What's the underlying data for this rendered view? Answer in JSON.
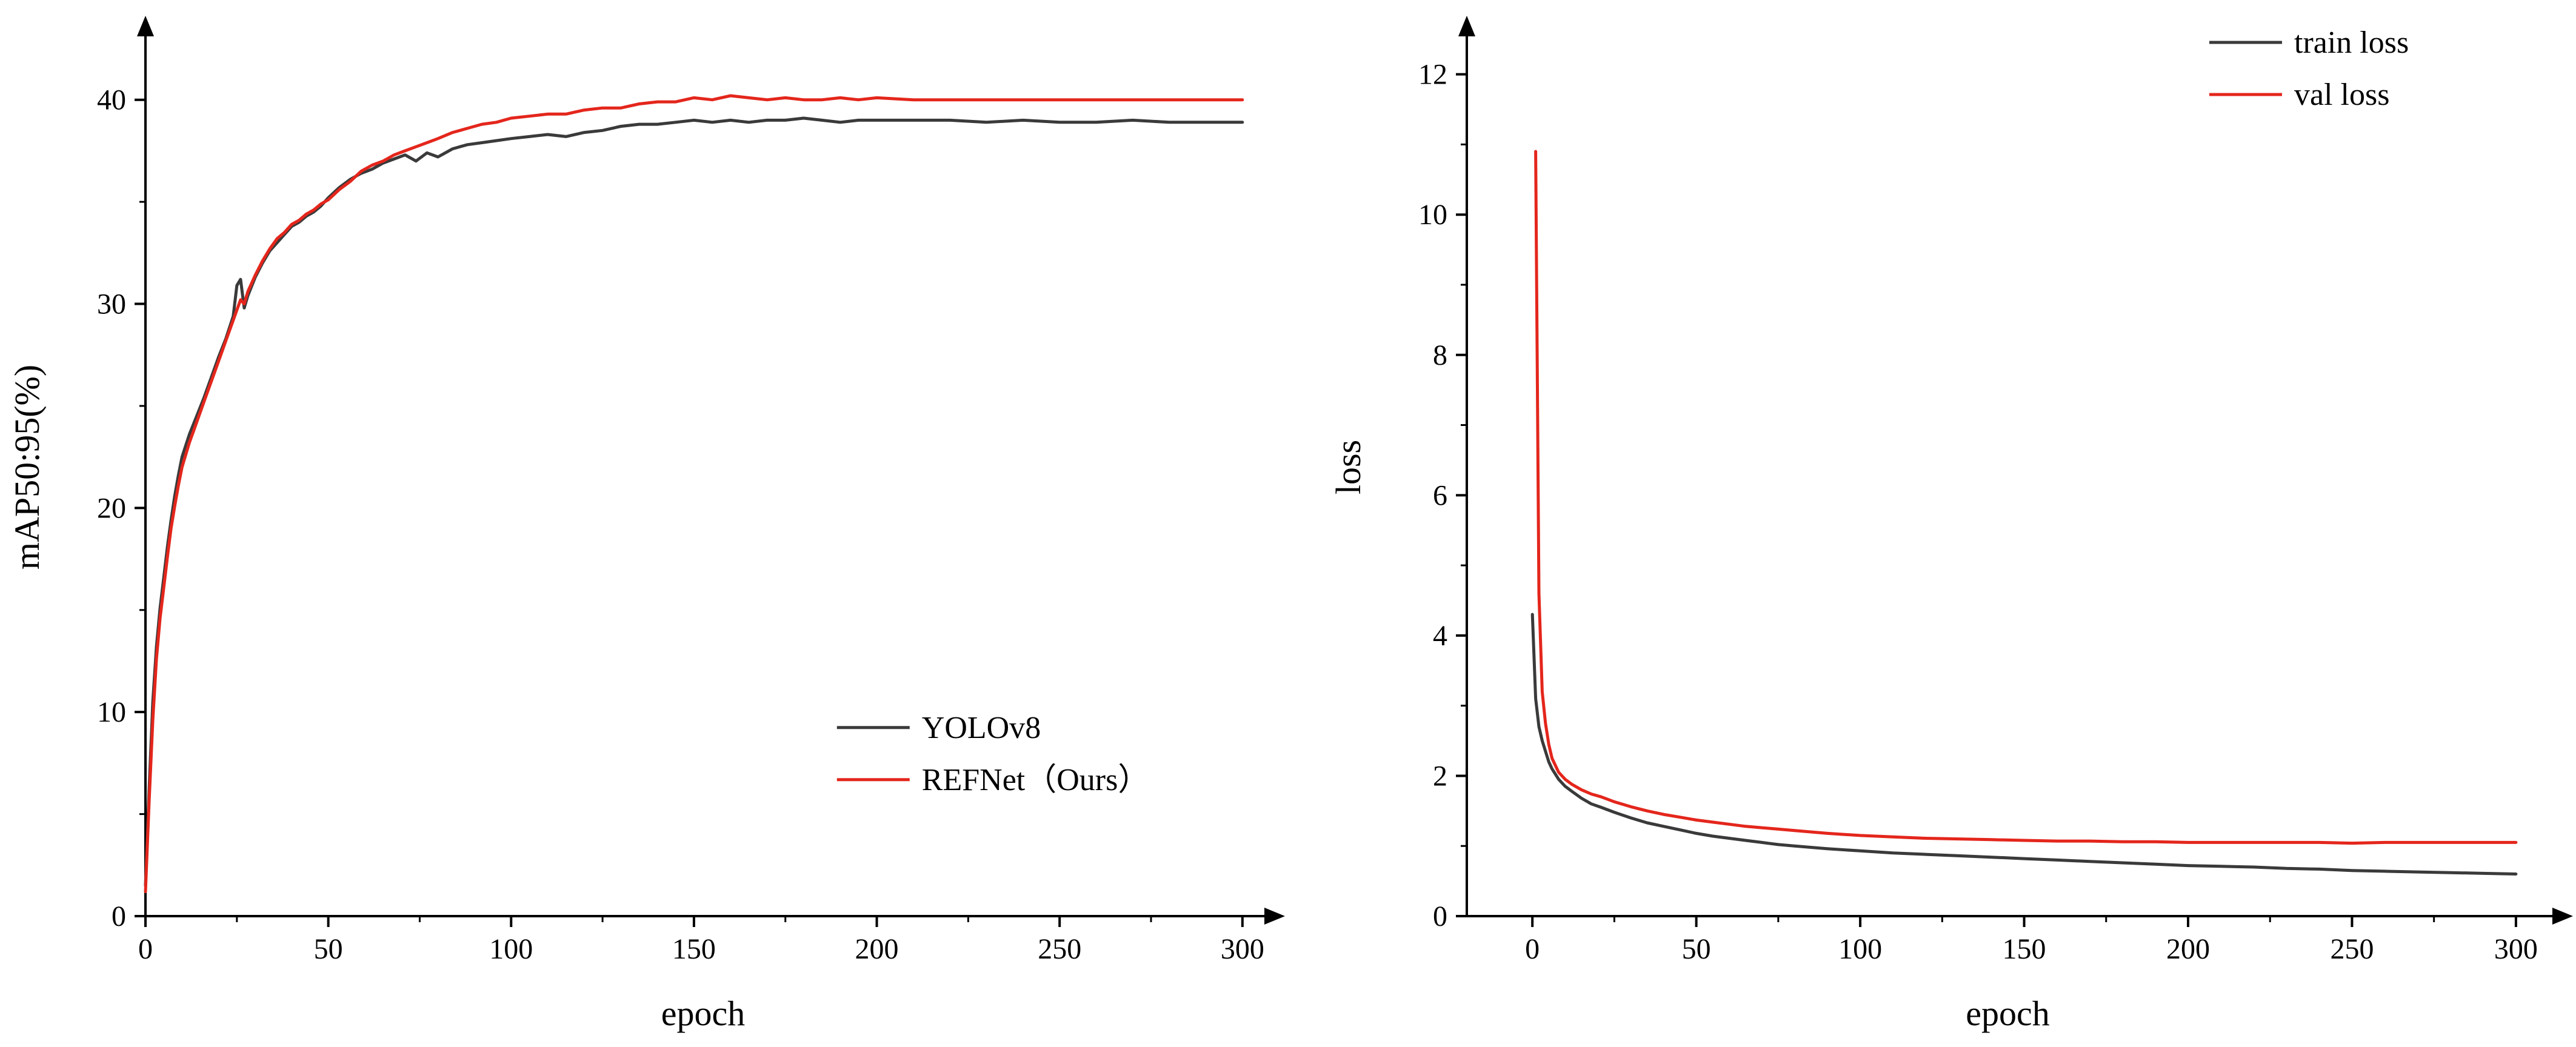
{
  "figure": {
    "background": "#ffffff",
    "description": "Two training-curve line charts: mAP50:95(%) vs epoch and loss vs epoch"
  },
  "colors": {
    "axis": "#000000",
    "series_dark": "#3a3a3a",
    "series_red": "#e4261c"
  },
  "chart_data": [
    {
      "type": "line",
      "title": "",
      "xlabel": "epoch",
      "ylabel": "mAP50:95(%)",
      "xlim": [
        0,
        305
      ],
      "ylim": [
        0,
        44
      ],
      "xticks": [
        0,
        50,
        100,
        150,
        200,
        250,
        300
      ],
      "yticks": [
        0,
        10,
        20,
        30,
        40
      ],
      "grid": false,
      "legend_position": "lower-right",
      "axis_color": "#000000",
      "series": [
        {
          "name": "YOLOv8",
          "color": "#3a3a3a",
          "x": [
            0,
            1,
            2,
            3,
            4,
            5,
            6,
            7,
            8,
            9,
            10,
            12,
            14,
            16,
            18,
            20,
            22,
            24,
            25,
            26,
            27,
            28,
            30,
            32,
            34,
            36,
            38,
            40,
            42,
            44,
            46,
            48,
            50,
            53,
            56,
            59,
            62,
            65,
            68,
            71,
            74,
            77,
            80,
            84,
            88,
            92,
            96,
            100,
            105,
            110,
            115,
            120,
            125,
            130,
            135,
            140,
            145,
            150,
            155,
            160,
            165,
            170,
            175,
            180,
            185,
            190,
            195,
            200,
            210,
            220,
            230,
            240,
            250,
            260,
            270,
            280,
            290,
            300
          ],
          "y": [
            1.5,
            6.2,
            10.5,
            13.2,
            15.1,
            16.6,
            18.1,
            19.4,
            20.6,
            21.6,
            22.5,
            23.6,
            24.5,
            25.4,
            26.4,
            27.4,
            28.3,
            29.4,
            30.9,
            31.2,
            29.8,
            30.4,
            31.3,
            32.0,
            32.6,
            33.0,
            33.4,
            33.8,
            34.0,
            34.3,
            34.5,
            34.8,
            35.2,
            35.7,
            36.1,
            36.4,
            36.6,
            36.9,
            37.1,
            37.3,
            37.0,
            37.4,
            37.2,
            37.6,
            37.8,
            37.9,
            38.0,
            38.1,
            38.2,
            38.3,
            38.2,
            38.4,
            38.5,
            38.7,
            38.8,
            38.8,
            38.9,
            39.0,
            38.9,
            39.0,
            38.9,
            39.0,
            39.0,
            39.1,
            39.0,
            38.9,
            39.0,
            39.0,
            39.0,
            39.0,
            38.9,
            39.0,
            38.9,
            38.9,
            39.0,
            38.9,
            38.9,
            38.9
          ]
        },
        {
          "name": "REFNet（Ours）",
          "color": "#e4261c",
          "x": [
            0,
            1,
            2,
            3,
            4,
            5,
            6,
            7,
            8,
            9,
            10,
            12,
            14,
            16,
            18,
            20,
            22,
            24,
            25,
            26,
            27,
            28,
            30,
            32,
            34,
            36,
            38,
            40,
            42,
            44,
            46,
            48,
            50,
            53,
            56,
            59,
            62,
            65,
            68,
            71,
            74,
            77,
            80,
            84,
            88,
            92,
            96,
            100,
            105,
            110,
            115,
            120,
            125,
            130,
            135,
            140,
            145,
            150,
            155,
            160,
            165,
            170,
            175,
            180,
            185,
            190,
            195,
            200,
            210,
            220,
            230,
            240,
            250,
            260,
            270,
            280,
            290,
            300
          ],
          "y": [
            1.2,
            5.6,
            9.6,
            12.6,
            14.6,
            16.1,
            17.6,
            19.0,
            20.1,
            21.1,
            22.0,
            23.2,
            24.2,
            25.2,
            26.2,
            27.2,
            28.2,
            29.2,
            29.7,
            30.2,
            30.0,
            30.6,
            31.4,
            32.1,
            32.7,
            33.2,
            33.5,
            33.9,
            34.1,
            34.4,
            34.6,
            34.9,
            35.1,
            35.6,
            36.0,
            36.5,
            36.8,
            37.0,
            37.3,
            37.5,
            37.7,
            37.9,
            38.1,
            38.4,
            38.6,
            38.8,
            38.9,
            39.1,
            39.2,
            39.3,
            39.3,
            39.5,
            39.6,
            39.6,
            39.8,
            39.9,
            39.9,
            40.1,
            40.0,
            40.2,
            40.1,
            40.0,
            40.1,
            40.0,
            40.0,
            40.1,
            40.0,
            40.1,
            40.0,
            40.0,
            40.0,
            40.0,
            40.0,
            40.0,
            40.0,
            40.0,
            40.0,
            40.0
          ]
        }
      ]
    },
    {
      "type": "line",
      "title": "",
      "xlabel": "epoch",
      "ylabel": "loss",
      "xlim": [
        -20,
        310
      ],
      "ylim": [
        0,
        12.8
      ],
      "xticks": [
        0,
        50,
        100,
        150,
        200,
        250,
        300
      ],
      "yticks": [
        0,
        2,
        4,
        6,
        8,
        10,
        12
      ],
      "grid": false,
      "legend_position": "upper-right",
      "axis_color": "#000000",
      "series": [
        {
          "name": "train loss",
          "color": "#3a3a3a",
          "x": [
            0,
            1,
            2,
            3,
            4,
            5,
            6,
            8,
            10,
            12,
            15,
            18,
            21,
            25,
            30,
            35,
            40,
            45,
            50,
            55,
            60,
            65,
            70,
            75,
            80,
            90,
            100,
            110,
            120,
            130,
            140,
            150,
            160,
            170,
            180,
            190,
            200,
            210,
            220,
            230,
            240,
            250,
            260,
            270,
            280,
            290,
            300
          ],
          "y": [
            4.3,
            3.1,
            2.7,
            2.5,
            2.35,
            2.2,
            2.1,
            1.95,
            1.85,
            1.78,
            1.68,
            1.6,
            1.55,
            1.48,
            1.4,
            1.33,
            1.28,
            1.23,
            1.18,
            1.14,
            1.11,
            1.08,
            1.05,
            1.02,
            1.0,
            0.96,
            0.93,
            0.9,
            0.88,
            0.86,
            0.84,
            0.82,
            0.8,
            0.78,
            0.76,
            0.74,
            0.72,
            0.71,
            0.7,
            0.68,
            0.67,
            0.65,
            0.64,
            0.63,
            0.62,
            0.61,
            0.6
          ]
        },
        {
          "name": "val loss",
          "color": "#e4261c",
          "x": [
            1,
            2,
            3,
            4,
            5,
            6,
            8,
            10,
            12,
            15,
            18,
            21,
            25,
            30,
            35,
            40,
            45,
            50,
            55,
            60,
            65,
            70,
            75,
            80,
            90,
            100,
            110,
            120,
            130,
            140,
            150,
            160,
            170,
            180,
            190,
            200,
            210,
            220,
            230,
            240,
            250,
            260,
            270,
            280,
            290,
            300
          ],
          "y": [
            10.9,
            4.6,
            3.2,
            2.75,
            2.45,
            2.25,
            2.05,
            1.95,
            1.88,
            1.8,
            1.74,
            1.7,
            1.63,
            1.56,
            1.5,
            1.45,
            1.41,
            1.37,
            1.34,
            1.31,
            1.28,
            1.26,
            1.24,
            1.22,
            1.18,
            1.15,
            1.13,
            1.11,
            1.1,
            1.09,
            1.08,
            1.07,
            1.07,
            1.06,
            1.06,
            1.05,
            1.05,
            1.05,
            1.05,
            1.05,
            1.04,
            1.05,
            1.05,
            1.05,
            1.05,
            1.05
          ]
        }
      ]
    }
  ]
}
